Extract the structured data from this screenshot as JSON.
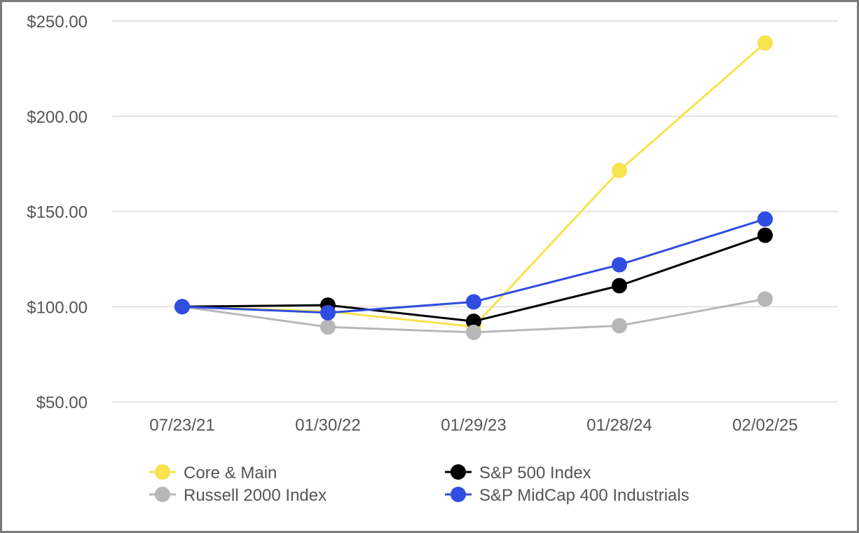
{
  "chart_data": {
    "type": "line",
    "title": "",
    "xlabel": "",
    "ylabel": "",
    "categories": [
      "07/23/21",
      "01/30/22",
      "01/29/23",
      "01/28/24",
      "02/02/25"
    ],
    "ylim": [
      50,
      250
    ],
    "yticks": [
      50,
      100,
      150,
      200,
      250
    ],
    "ytick_labels": [
      "$50.00",
      "$100.00",
      "$150.00",
      "$200.00",
      "$250.00"
    ],
    "grid": "horizontal",
    "legend_position": "bottom",
    "series": [
      {
        "name": "Core & Main",
        "color": "#f7e34b",
        "values": [
          100.0,
          97.5,
          89.5,
          171.5,
          238.5
        ]
      },
      {
        "name": "S&P 500 Index",
        "color": "#000000",
        "values": [
          100.0,
          100.8,
          92.3,
          111.0,
          137.5
        ]
      },
      {
        "name": "Russell 2000 Index",
        "color": "#b7b7b7",
        "values": [
          100.0,
          89.3,
          86.5,
          90.0,
          104.0
        ]
      },
      {
        "name": "S&P MidCap 400 Industrials",
        "color": "#2f4de0",
        "values": [
          100.0,
          96.8,
          102.5,
          122.0,
          146.0
        ]
      }
    ]
  }
}
